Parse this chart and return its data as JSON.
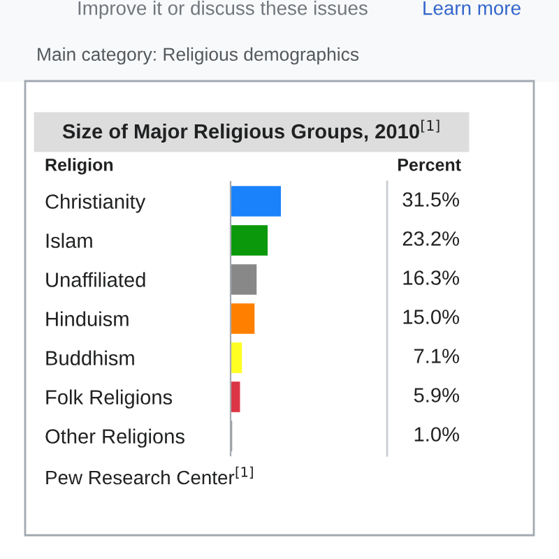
{
  "chart_data": {
    "type": "bar",
    "orientation": "horizontal",
    "title": "Size of Major Religious Groups, 2010$^{[1]}$",
    "ylabel": "Religion",
    "categories": [
      "Christianity",
      "Islam",
      "Unaffiliated",
      "Hinduism",
      "Buddhism",
      "Folk Religions",
      "Other Religions"
    ],
    "values": [
      31.5,
      23.2,
      16.3,
      15.0,
      7.1,
      5.9,
      1.0
    ],
    "colors": [
      "#1a82fb",
      "#0b990b",
      "#888888",
      "#ff8000",
      "#ffff22",
      "#dc3545",
      "#999999"
    ],
    "value_labels": [
      "31.5%",
      "23.2%",
      "16.3%",
      "15.0%",
      "7.1%",
      "5.9%",
      "1.0%"
    ],
    "annotations": [
      "Improve it or discuss these issues",
      "Learn more",
      "Main category: Religious demographics",
      "Pew Research Center$^{[1]}$",
      "Percent"
    ]
  }
}
